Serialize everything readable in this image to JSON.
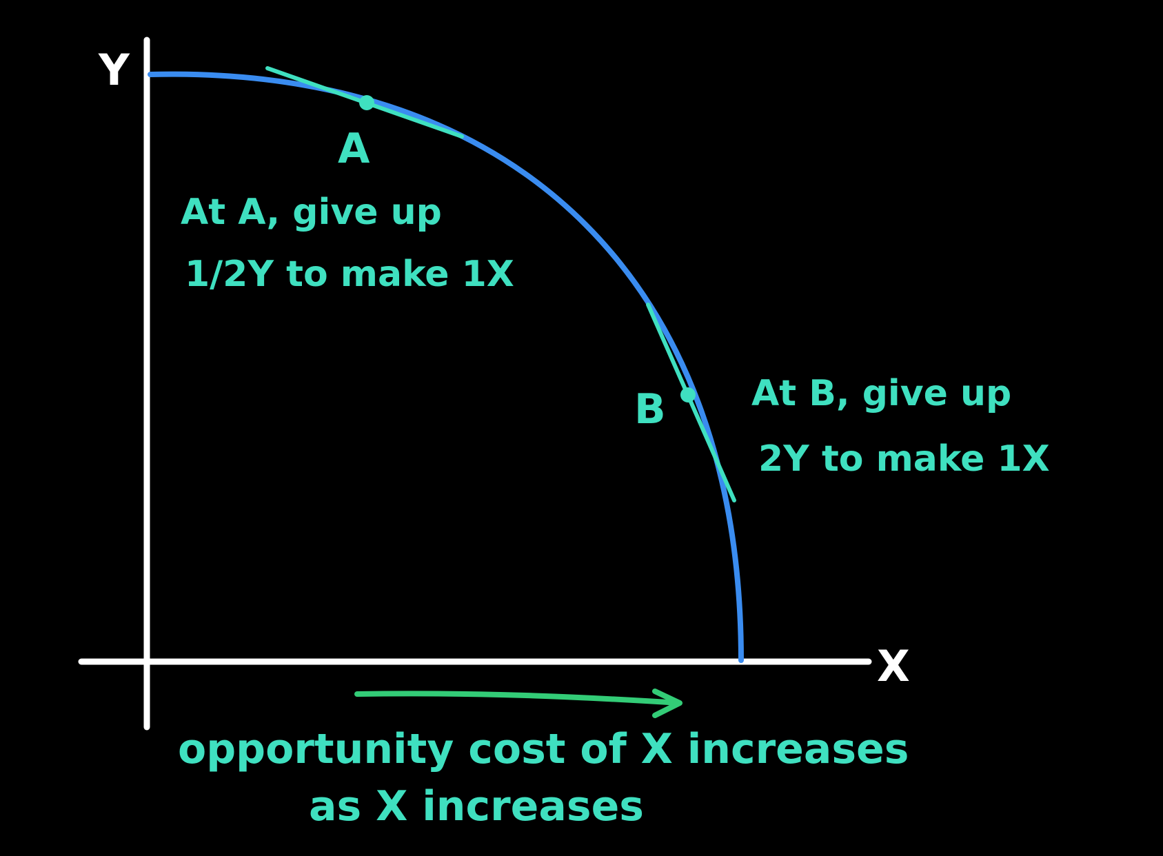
{
  "axes": {
    "y_label": "Y",
    "x_label": "X"
  },
  "points": {
    "a": {
      "label": "A",
      "note_line1": "At A, give up",
      "note_line2": "1/2Y to make 1X"
    },
    "b": {
      "label": "B",
      "note_line1": "At B, give up",
      "note_line2": "2Y to make 1X"
    }
  },
  "caption": {
    "line1": "opportunity cost of X increases",
    "line2": "as X increases"
  },
  "colors": {
    "background": "#000000",
    "axes": "#ffffff",
    "curve": "#3a8cf0",
    "annotation": "#3fe0c0",
    "arrow": "#33cc77"
  }
}
